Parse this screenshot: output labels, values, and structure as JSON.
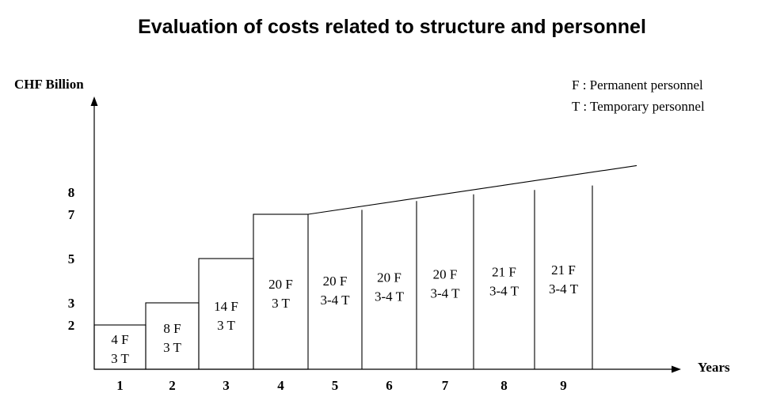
{
  "chart_data": {
    "type": "bar",
    "title": "Evaluation of costs related to structure and personnel",
    "ylabel": "CHF Billion",
    "xlabel": "Years",
    "ylim": [
      0,
      8.3
    ],
    "y_ticks": [
      "2",
      "3",
      "5",
      "7",
      "8"
    ],
    "categories": [
      "1",
      "2",
      "3",
      "4",
      "5",
      "6",
      "7",
      "8",
      "9"
    ],
    "values": [
      2,
      3,
      5,
      7,
      7.2,
      7.6,
      7.9,
      8.1,
      8.3
    ],
    "bar_labels": [
      [
        "4 F",
        "3 T"
      ],
      [
        "8 F",
        "3 T"
      ],
      [
        "14 F",
        "3 T"
      ],
      [
        "20 F",
        "3 T"
      ],
      [
        "20 F",
        "3-4 T"
      ],
      [
        "20 F",
        "3-4 T"
      ],
      [
        "20 F",
        "3-4 T"
      ],
      [
        "21 F",
        "3-4 T"
      ],
      [
        "21 F",
        "3-4 T"
      ]
    ],
    "trend_end_value": 9.2,
    "legend": [
      "F : Permanent personnel",
      "T : Temporary personnel"
    ],
    "legend_position": "top-right",
    "grid": false
  }
}
